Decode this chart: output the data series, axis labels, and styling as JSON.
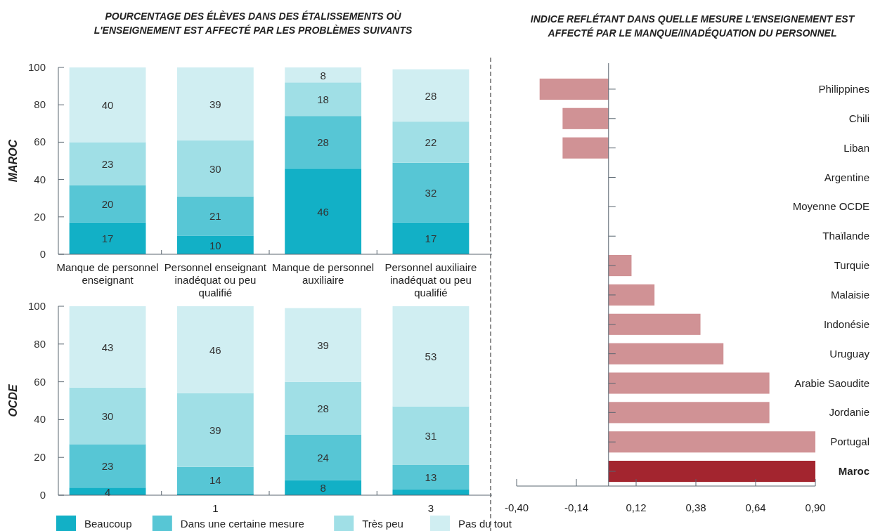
{
  "chart_data": [
    {
      "type": "bar",
      "stacked": true,
      "title": "POURCENTAGE DES ÉLÈVES DANS DES ÉTALISSEMENTS OÙ L'ENSEIGNEMENT EST AFFECTÉ PAR LES PROBLÈMES SUIVANTS",
      "ylabel": "MAROC",
      "categories": [
        "Manque de personnel enseignant",
        "Personnel enseignant inadéquat ou peu qualifié",
        "Manque de personnel auxiliaire",
        "Personnel auxiliaire inadéquat ou peu qualifié"
      ],
      "ylim": [
        0,
        100
      ],
      "yticks": [
        0,
        20,
        40,
        60,
        80,
        100
      ],
      "data_labels": true,
      "series": [
        {
          "color": "#12b0c6",
          "values": [
            17,
            10,
            46,
            17
          ]
        },
        {
          "color": "#57c6d5",
          "values": [
            20,
            21,
            28,
            32
          ]
        },
        {
          "color": "#a0dfe6",
          "values": [
            23,
            30,
            18,
            22
          ]
        },
        {
          "color": "#d0eef2",
          "values": [
            40,
            39,
            8,
            28
          ]
        }
      ]
    },
    {
      "type": "bar",
      "stacked": true,
      "ylabel": "OCDE",
      "categories": [
        null,
        "1",
        null,
        "3"
      ],
      "ylim": [
        0,
        100
      ],
      "yticks": [
        0,
        20,
        40,
        60,
        80,
        100
      ],
      "legend": "bottom",
      "series": [
        {
          "name": "Beaucoup",
          "color": "#12b0c6",
          "values": [
            4,
            1,
            8,
            3
          ],
          "value_labels": [
            "4",
            null,
            "8",
            null
          ]
        },
        {
          "name": "Dans une certaine mesure",
          "color": "#57c6d5",
          "values": [
            23,
            14,
            24,
            13
          ],
          "value_labels": [
            "23",
            "14",
            "24",
            "13"
          ]
        },
        {
          "name": "Très peu",
          "color": "#a0dfe6",
          "values": [
            30,
            39,
            28,
            31
          ],
          "value_labels": [
            "30",
            "39",
            "28",
            "31"
          ]
        },
        {
          "name": "Pas du tout",
          "color": "#d0eef2",
          "values": [
            43,
            46,
            39,
            53
          ],
          "value_labels": [
            "43",
            "46",
            "39",
            "53"
          ]
        }
      ]
    },
    {
      "type": "bar",
      "orientation": "horizontal",
      "title": "INDICE REFLÉTANT DANS QUELLE MESURE L'ENSEIGNEMENT EST AFFECTÉ PAR LE MANQUE/INADÉQUATION DU PERSONNEL",
      "categories": [
        "Philippines",
        "Chili",
        "Liban",
        "Argentine",
        "Moyenne OCDE",
        "Thaïlande",
        "Turquie",
        "Malaisie",
        "Indonésie",
        "Uruguay",
        "Arabie Saoudite",
        "Jordanie",
        "Portugal",
        "Maroc"
      ],
      "values": [
        -0.3,
        -0.2,
        -0.2,
        0,
        0,
        0,
        0.1,
        0.2,
        0.4,
        0.5,
        0.7,
        0.7,
        0.9,
        0.9
      ],
      "colors": [
        "#d09295",
        "#d09295",
        "#d09295",
        "#d09295",
        "#d09295",
        "#d09295",
        "#d09295",
        "#d09295",
        "#d09295",
        "#d09295",
        "#d09295",
        "#d09295",
        "#d09295",
        "#a3252f"
      ],
      "xlim": [
        -0.4,
        0.9
      ],
      "xticks": [
        {
          "value": -0.4,
          "label": "-0,40"
        },
        {
          "value": -0.14,
          "label": "-0,14"
        },
        {
          "value": 0.12,
          "label": "0,12"
        },
        {
          "value": 0.38,
          "label": "0,38"
        },
        {
          "value": 0.64,
          "label": "0,64"
        },
        {
          "value": 0.9,
          "label": "0,90"
        }
      ]
    }
  ]
}
